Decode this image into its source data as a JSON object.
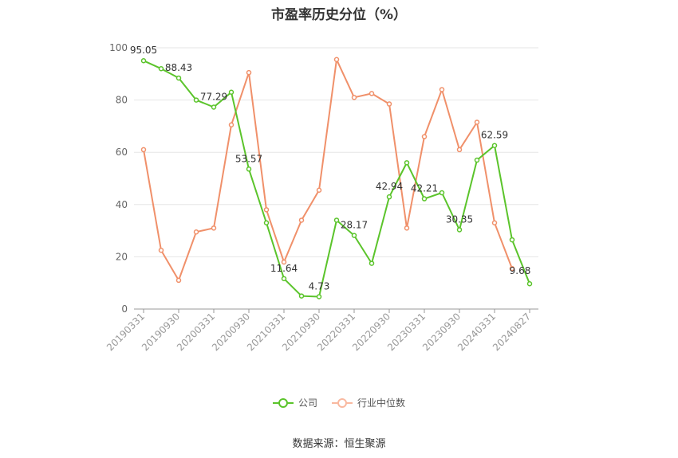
{
  "title": "市盈率历史分位（%）",
  "source": "数据来源：恒生聚源",
  "colors": {
    "company": "#5bc42b",
    "industry": "#f0906a",
    "grid": "#e6e6e6",
    "axis": "#999999"
  },
  "legend": [
    {
      "name": "公司",
      "color": "#5bc42b"
    },
    {
      "name": "行业中位数",
      "color": "#f9b9a0"
    }
  ],
  "chart_data": {
    "type": "line",
    "title": "市盈率历史分位（%）",
    "ylim": [
      0,
      100
    ],
    "yticks": [
      "0",
      "20",
      "40",
      "60",
      "80",
      "100"
    ],
    "xtick_labels": [
      "20190331",
      "20190930",
      "20200331",
      "20200930",
      "20210331",
      "20210930",
      "20220331",
      "20220930",
      "20230331",
      "20230930",
      "20240331",
      "20240827"
    ],
    "x": [
      "20190331",
      "20190630",
      "20190930",
      "20191231",
      "20200331",
      "20200630",
      "20200930",
      "20201231",
      "20210331",
      "20210630",
      "20210930",
      "20211231",
      "20220331",
      "20220630",
      "20220930",
      "20221231",
      "20230331",
      "20230630",
      "20230930",
      "20231231",
      "20240331",
      "20240630",
      "20240827"
    ],
    "grid": true,
    "legend_position": "bottom",
    "series": [
      {
        "name": "公司",
        "color": "#5bc42b",
        "values": [
          95.05,
          92.0,
          88.43,
          80.0,
          77.29,
          83.0,
          53.57,
          33.0,
          11.64,
          5.0,
          4.73,
          34.0,
          28.17,
          17.5,
          42.94,
          56.0,
          42.21,
          44.5,
          30.35,
          57.0,
          62.59,
          26.5,
          9.68
        ],
        "labels": [
          "95.05",
          "",
          "88.43",
          "",
          "77.29",
          "",
          "53.57",
          "",
          "11.64",
          "",
          "4.73",
          "",
          "28.17",
          "",
          "42.94",
          "",
          "42.21",
          "",
          "30.35",
          "",
          "62.59",
          "",
          "9.68"
        ]
      },
      {
        "name": "行业中位数",
        "color": "#f0906a",
        "values": [
          61.0,
          22.5,
          11.0,
          29.5,
          31.0,
          70.5,
          90.5,
          38.0,
          18.0,
          34.0,
          45.5,
          95.5,
          81.0,
          82.5,
          78.5,
          31.0,
          66.0,
          84.0,
          61.0,
          71.5,
          33.0,
          15.5,
          null
        ]
      }
    ]
  }
}
